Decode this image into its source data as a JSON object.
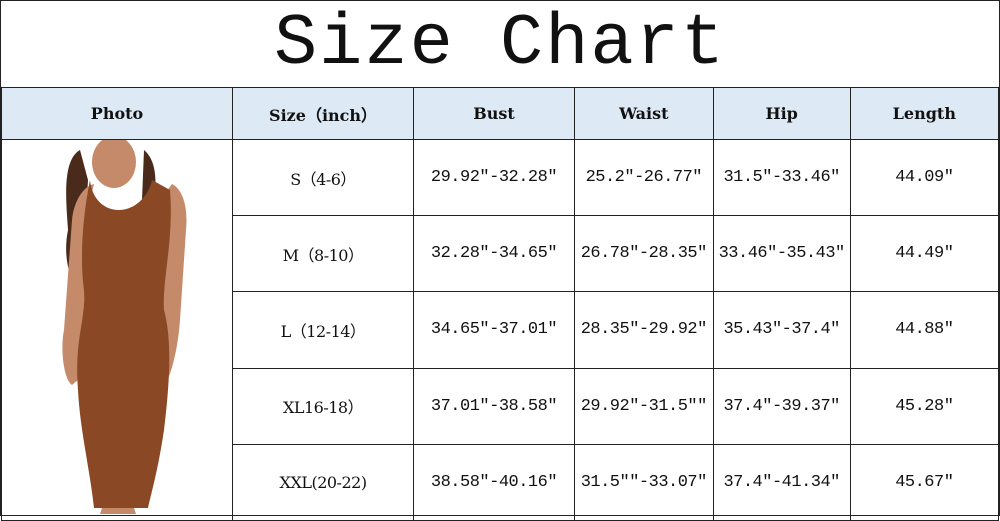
{
  "title": "Size Chart",
  "headers": [
    "Photo",
    "Size（inch）",
    "Bust",
    "Waist",
    "Hip",
    "Length"
  ],
  "rows": [
    {
      "size": "S（4-6）",
      "bust": "29.92″-32.28″",
      "waist": "25.2″-26.77″",
      "hip": "31.5″-33.46″",
      "length": "44.09″"
    },
    {
      "size": "M（8-10）",
      "bust": "32.28″-34.65″",
      "waist": "26.78″-28.35″",
      "hip": "33.46″-35.43″",
      "length": "44.49″"
    },
    {
      "size": "L（12-14）",
      "bust": "34.65″-37.01″",
      "waist": "28.35″-29.92″",
      "hip": "35.43″-37.4″",
      "length": "44.88″"
    },
    {
      "size": "XL16-18）",
      "bust": "37.01″-38.58″",
      "waist": "29.92″-31.5″″",
      "hip": "37.4″-39.37″",
      "length": "45.28″"
    },
    {
      "size": "XXL(20-22)",
      "bust": "38.58″-40.16″",
      "waist": "31.5″″-33.07″",
      "hip": "37.4″-41.34″",
      "length": "45.67″"
    }
  ],
  "colors": {
    "header_bg": "#dde9f5",
    "dress": "#8a4824",
    "border": "#222222"
  }
}
